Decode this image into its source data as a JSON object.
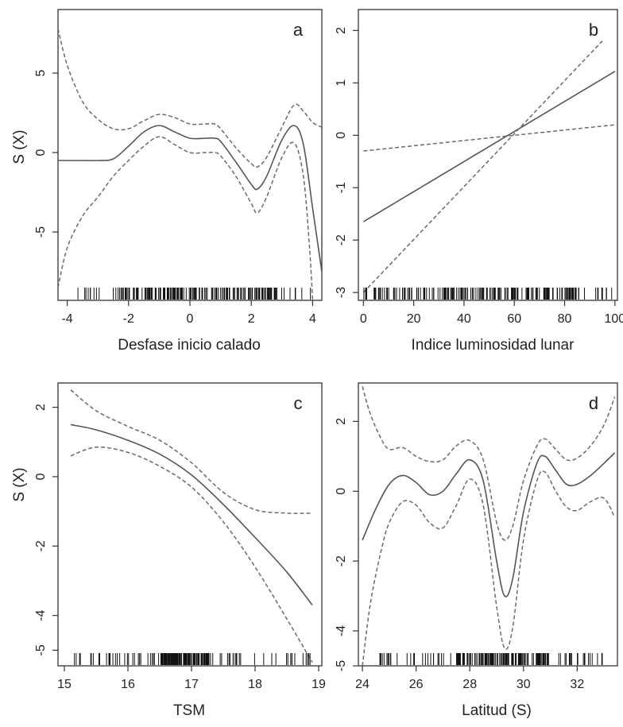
{
  "chart_data": [
    {
      "id": "a",
      "type": "line",
      "panel_label": "a",
      "xlabel": "Desfase inicio calado",
      "ylabel": "S (X)",
      "xlim": [
        -4.3,
        4.3
      ],
      "ylim": [
        -9.3,
        9.0
      ],
      "xticks": [
        -4,
        -2,
        0,
        2,
        4
      ],
      "xtick_labels": [
        "-4",
        "-2",
        "0",
        "2",
        "4"
      ],
      "yticks": [
        -5,
        0,
        5
      ],
      "ytick_labels": [
        "-5",
        "0",
        "5"
      ],
      "series": [
        {
          "role": "fit",
          "style": "solid",
          "x": [
            -4.3,
            -4.0,
            -3.5,
            -3.0,
            -2.5,
            -2.0,
            -1.5,
            -1.0,
            -0.5,
            0.0,
            0.5,
            0.8,
            1.0,
            1.5,
            2.0,
            2.2,
            2.5,
            3.0,
            3.4,
            3.7,
            4.0,
            4.3
          ],
          "y": [
            -0.5,
            -0.5,
            -0.5,
            -0.5,
            -0.4,
            0.4,
            1.3,
            1.7,
            1.3,
            0.9,
            0.9,
            0.9,
            0.7,
            -0.6,
            -2.0,
            -2.3,
            -1.5,
            0.8,
            1.7,
            0.5,
            -3.5,
            -7.5
          ]
        },
        {
          "role": "upper",
          "style": "dashed",
          "x": [
            -4.3,
            -4.0,
            -3.5,
            -3.0,
            -2.5,
            -2.0,
            -1.5,
            -1.0,
            -0.5,
            0.0,
            0.5,
            0.8,
            1.0,
            1.5,
            2.0,
            2.2,
            2.5,
            3.0,
            3.4,
            3.7,
            4.0,
            4.3
          ],
          "y": [
            7.8,
            5.5,
            3.2,
            2.1,
            1.5,
            1.5,
            2.0,
            2.4,
            2.2,
            1.8,
            1.8,
            1.8,
            1.5,
            0.3,
            -0.7,
            -0.9,
            -0.3,
            1.6,
            3.0,
            2.6,
            1.9,
            1.6
          ]
        },
        {
          "role": "lower",
          "style": "dashed",
          "x": [
            -4.3,
            -4.0,
            -3.5,
            -3.0,
            -2.5,
            -2.0,
            -1.5,
            -1.0,
            -0.5,
            0.0,
            0.5,
            0.8,
            1.0,
            1.5,
            2.0,
            2.2,
            2.5,
            3.0,
            3.4,
            3.7,
            3.9,
            4.0
          ],
          "y": [
            -8.5,
            -6.0,
            -4.0,
            -2.8,
            -1.5,
            -0.5,
            0.4,
            1.0,
            0.5,
            0.0,
            0.0,
            0.0,
            -0.2,
            -1.5,
            -3.2,
            -3.8,
            -2.8,
            -0.3,
            0.6,
            -1.5,
            -6.0,
            -9.3
          ]
        }
      ],
      "rug": {
        "min": -4.1,
        "max": 4.1,
        "dense": [
          -2.3,
          2.9
        ]
      }
    },
    {
      "id": "b",
      "type": "line",
      "panel_label": "b",
      "xlabel": "Indice luminosidad lunar",
      "ylabel": "",
      "xlim": [
        -2,
        101
      ],
      "ylim": [
        -3.15,
        2.4
      ],
      "xticks": [
        0,
        20,
        40,
        60,
        80,
        100
      ],
      "xtick_labels": [
        "0",
        "20",
        "40",
        "60",
        "80",
        "100"
      ],
      "yticks": [
        -3,
        -2,
        -1,
        0,
        1,
        2
      ],
      "ytick_labels": [
        "-3",
        "-2",
        "-1",
        "0",
        "1",
        "2"
      ],
      "series": [
        {
          "role": "fit",
          "style": "solid",
          "x": [
            0,
            100
          ],
          "y": [
            -1.65,
            1.22
          ]
        },
        {
          "role": "upper",
          "style": "dashed",
          "x": [
            0,
            95
          ],
          "y": [
            -3.0,
            1.8
          ]
        },
        {
          "role": "lower",
          "style": "dashed",
          "x": [
            0,
            100
          ],
          "y": [
            -0.3,
            0.2
          ]
        }
      ],
      "rug": {
        "min": 0,
        "max": 100,
        "dense": []
      }
    },
    {
      "id": "c",
      "type": "line",
      "panel_label": "c",
      "xlabel": "TSM",
      "ylabel": "S (X)",
      "xlim": [
        14.9,
        19.05
      ],
      "ylim": [
        -5.45,
        2.7
      ],
      "xticks": [
        15,
        16,
        17,
        18,
        19
      ],
      "xtick_labels": [
        "15",
        "16",
        "17",
        "18",
        "19"
      ],
      "yticks": [
        -5,
        -4,
        -2,
        0,
        2
      ],
      "ytick_labels": [
        "-5",
        "-4",
        "-2",
        "0",
        "2"
      ],
      "series": [
        {
          "role": "fit",
          "style": "solid",
          "x": [
            15.1,
            15.5,
            16.0,
            16.5,
            17.0,
            17.5,
            18.0,
            18.5,
            18.9
          ],
          "y": [
            1.5,
            1.35,
            1.05,
            0.65,
            0.05,
            -0.8,
            -1.75,
            -2.75,
            -3.7
          ]
        },
        {
          "role": "upper",
          "style": "dashed",
          "x": [
            15.1,
            15.5,
            16.0,
            16.5,
            17.0,
            17.5,
            18.0,
            18.5,
            18.9
          ],
          "y": [
            2.5,
            1.9,
            1.45,
            1.05,
            0.4,
            -0.45,
            -0.95,
            -1.05,
            -1.05
          ]
        },
        {
          "role": "lower",
          "style": "dashed",
          "x": [
            15.1,
            15.5,
            16.0,
            16.5,
            17.0,
            17.5,
            18.0,
            18.5,
            18.9
          ],
          "y": [
            0.6,
            0.85,
            0.7,
            0.3,
            -0.3,
            -1.3,
            -2.6,
            -4.1,
            -5.35
          ]
        }
      ],
      "rug": {
        "min": 15.1,
        "max": 18.9,
        "dense": [
          16.5,
          17.3
        ]
      }
    },
    {
      "id": "d",
      "type": "line",
      "panel_label": "d",
      "xlabel": "Latitud (S)",
      "ylabel": "",
      "xlim": [
        23.85,
        33.5
      ],
      "ylim": [
        -5.0,
        3.1
      ],
      "xticks": [
        24,
        26,
        28,
        30,
        32
      ],
      "xtick_labels": [
        "24",
        "26",
        "28",
        "30",
        "32"
      ],
      "yticks": [
        -5,
        -4,
        -2,
        0,
        2
      ],
      "ytick_labels": [
        "-5",
        "-4",
        "-2",
        "0",
        "2"
      ],
      "series": [
        {
          "role": "fit",
          "style": "solid",
          "x": [
            24.0,
            24.5,
            25.0,
            25.5,
            26.0,
            26.5,
            27.0,
            27.5,
            28.0,
            28.5,
            29.0,
            29.3,
            29.6,
            30.0,
            30.5,
            30.8,
            31.2,
            31.6,
            32.0,
            32.5,
            33.0,
            33.4
          ],
          "y": [
            -1.4,
            -0.5,
            0.2,
            0.45,
            0.25,
            -0.1,
            0.0,
            0.5,
            0.9,
            0.3,
            -2.0,
            -3.0,
            -2.5,
            -0.6,
            0.8,
            1.0,
            0.6,
            0.2,
            0.2,
            0.45,
            0.8,
            1.1
          ]
        },
        {
          "role": "upper",
          "style": "dashed",
          "x": [
            24.0,
            24.3,
            24.7,
            25.0,
            25.5,
            26.0,
            26.5,
            27.0,
            27.5,
            28.0,
            28.5,
            29.0,
            29.3,
            29.6,
            30.0,
            30.5,
            30.8,
            31.2,
            31.6,
            32.0,
            32.5,
            33.0,
            33.4
          ],
          "y": [
            3.0,
            2.2,
            1.5,
            1.2,
            1.25,
            1.0,
            0.85,
            0.9,
            1.3,
            1.45,
            0.9,
            -0.9,
            -1.4,
            -1.0,
            0.3,
            1.3,
            1.5,
            1.2,
            0.9,
            0.95,
            1.3,
            1.9,
            2.7
          ]
        },
        {
          "role": "lower",
          "style": "dashed",
          "x": [
            24.0,
            24.3,
            24.7,
            25.0,
            25.5,
            26.0,
            26.5,
            27.0,
            27.5,
            28.0,
            28.5,
            29.0,
            29.3,
            29.6,
            30.0,
            30.5,
            30.8,
            31.2,
            31.6,
            32.0,
            32.5,
            33.0,
            33.4
          ],
          "y": [
            -5.0,
            -3.2,
            -1.7,
            -0.9,
            -0.3,
            -0.4,
            -0.9,
            -1.05,
            -0.4,
            0.35,
            -0.4,
            -3.3,
            -4.5,
            -3.9,
            -1.4,
            0.3,
            0.55,
            0.0,
            -0.45,
            -0.55,
            -0.3,
            -0.2,
            -0.75
          ]
        }
      ],
      "rug": {
        "min": 24.6,
        "max": 33.3,
        "dense": [
          27.5,
          31.0
        ]
      }
    }
  ]
}
